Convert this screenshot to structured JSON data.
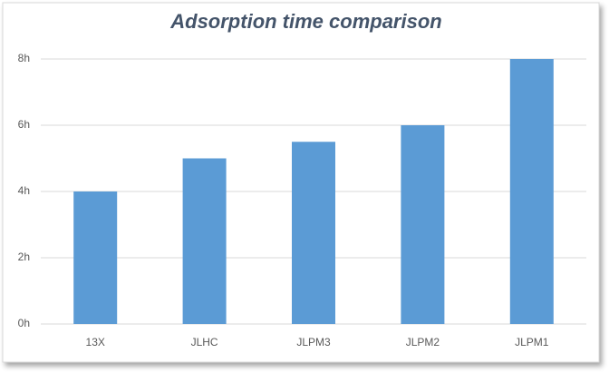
{
  "chart_data": {
    "type": "bar",
    "title": "Adsorption time comparison",
    "categories": [
      "13X",
      "JLHC",
      "JLPM3",
      "JLPM2",
      "JLPM1"
    ],
    "values": [
      4,
      5,
      5.5,
      6,
      8
    ],
    "color": "#5b9bd5",
    "ylim": [
      0,
      8
    ],
    "yticks": [
      {
        "value": 0,
        "label": "0h"
      },
      {
        "value": 2,
        "label": "2h"
      },
      {
        "value": 4,
        "label": "4h"
      },
      {
        "value": 6,
        "label": "6h"
      },
      {
        "value": 8,
        "label": "8h"
      }
    ],
    "grid": true
  }
}
